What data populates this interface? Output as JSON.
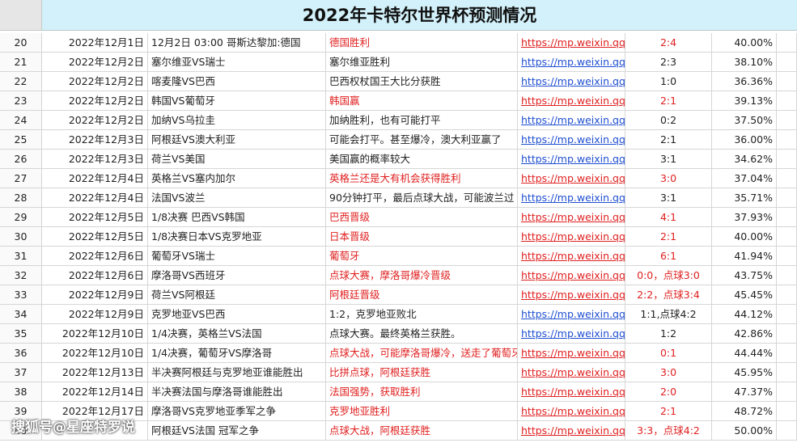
{
  "header": {
    "title": "2022年卡特尔世界杯预测情况"
  },
  "table": {
    "rows": [
      {
        "num": "20",
        "date": "2022年12月1日",
        "match": "12月2日  03:00 哥斯达黎加:德国",
        "prediction": "德国胜利",
        "link": "https://mp.weixin.qq.c",
        "score": "2:4",
        "rate": "40.00%",
        "highlight": true
      },
      {
        "num": "21",
        "date": "2022年12月2日",
        "match": "塞尔维亚VS瑞士",
        "prediction": "塞尔维亚胜利",
        "link": "https://mp.weixin.qq.c",
        "score": "2:3",
        "rate": "38.10%",
        "highlight": false
      },
      {
        "num": "22",
        "date": "2022年12月2日",
        "match": "喀麦隆VS巴西",
        "prediction": "巴西权杖国王大比分获胜",
        "link": "https://mp.weixin.qq.c",
        "score": "1:0",
        "rate": "36.36%",
        "highlight": false
      },
      {
        "num": "23",
        "date": "2022年12月2日",
        "match": "韩国VS葡萄牙",
        "prediction": "韩国赢",
        "link": "https://mp.weixin.qq.c",
        "score": "2:1",
        "rate": "39.13%",
        "highlight": true
      },
      {
        "num": "24",
        "date": "2022年12月2日",
        "match": "加纳VS乌拉圭",
        "prediction": "加纳胜利，也有可能打平",
        "link": "https://mp.weixin.qq.c",
        "score": "0:2",
        "rate": "37.50%",
        "highlight": false
      },
      {
        "num": "25",
        "date": "2022年12月3日",
        "match": "阿根廷VS澳大利亚",
        "prediction": "可能会打平。甚至爆冷，澳大利亚赢了",
        "link": "https://mp.weixin.qq.c",
        "score": "2:1",
        "rate": "36.00%",
        "highlight": false
      },
      {
        "num": "26",
        "date": "2022年12月3日",
        "match": "荷兰VS美国",
        "prediction": "美国赢的概率较大",
        "link": "https://mp.weixin.qq.c",
        "score": "3:1",
        "rate": "34.62%",
        "highlight": false
      },
      {
        "num": "27",
        "date": "2022年12月4日",
        "match": "英格兰VS塞内加尔",
        "prediction": "英格兰还是大有机会获得胜利",
        "link": "https://mp.weixin.qq.c",
        "score": "3:0",
        "rate": "37.04%",
        "highlight": true
      },
      {
        "num": "28",
        "date": "2022年12月4日",
        "match": "法国VS波兰",
        "prediction": "90分钟打平，最后点球大战，可能波兰过",
        "link": "https://mp.weixin.qq.c",
        "score": "3:1",
        "rate": "35.71%",
        "highlight": false
      },
      {
        "num": "29",
        "date": "2022年12月5日",
        "match": "1/8决赛 巴西VS韩国",
        "prediction": "巴西晋级",
        "link": "https://mp.weixin.qq.c",
        "score": "4:1",
        "rate": "37.93%",
        "highlight": true
      },
      {
        "num": "30",
        "date": "2022年12月5日",
        "match": "1/8决赛日本VS克罗地亚",
        "prediction": "日本晋级",
        "link": "https://mp.weixin.qq.c",
        "score": "2:1",
        "rate": "40.00%",
        "highlight": true
      },
      {
        "num": "31",
        "date": "2022年12月6日",
        "match": "葡萄牙VS瑞士",
        "prediction": "葡萄牙",
        "link": "https://mp.weixin.qq.c",
        "score": "6:1",
        "rate": "41.94%",
        "highlight": true
      },
      {
        "num": "32",
        "date": "2022年12月6日",
        "match": "摩洛哥VS西班牙",
        "prediction": "点球大赛，摩洛哥爆冷晋级",
        "link": "https://mp.weixin.qq.c",
        "score": "0:0，点球3:0",
        "rate": "43.75%",
        "highlight": true
      },
      {
        "num": "33",
        "date": "2022年12月9日",
        "match": "荷兰VS阿根廷",
        "prediction": "阿根廷晋级",
        "link": "https://mp.weixin.qq.c",
        "score": "2:2，点球3:4",
        "rate": "45.45%",
        "highlight": true
      },
      {
        "num": "34",
        "date": "2022年12月9日",
        "match": "克罗地亚VS巴西",
        "prediction": "1:2，克罗地亚败北",
        "link": "https://mp.weixin.qq.c",
        "score": "1:1,点球4:2",
        "rate": "44.12%",
        "highlight": false
      },
      {
        "num": "35",
        "date": "2022年12月10日",
        "match": "1/4决赛，英格兰VS法国",
        "prediction": "点球大赛。最终英格兰获胜。",
        "link": "https://mp.weixin.qq.c",
        "score": "1:2",
        "rate": "42.86%",
        "highlight": false
      },
      {
        "num": "36",
        "date": "2022年12月10日",
        "match": "1/4决赛，葡萄牙VS摩洛哥",
        "prediction": "点球大战，可能摩洛哥爆冷，送走了葡萄牙",
        "link": "https://mp.weixin.qq.c",
        "score": "0:1",
        "rate": "44.44%",
        "highlight": true
      },
      {
        "num": "37",
        "date": "2022年12月13日",
        "match": "半决赛阿根廷与克罗地亚谁能胜出",
        "prediction": "比拼点球，阿根廷获胜",
        "link": "https://mp.weixin.qq.c",
        "score": "3:0",
        "rate": "45.95%",
        "highlight": true
      },
      {
        "num": "38",
        "date": "2022年12月14日",
        "match": "半决赛法国与摩洛哥谁能胜出",
        "prediction": "法国强势，获取胜利",
        "link": "https://mp.weixin.qq.c",
        "score": "2:0",
        "rate": "47.37%",
        "highlight": true
      },
      {
        "num": "39",
        "date": "2022年12月17日",
        "match": "摩洛哥VS克罗地亚季军之争",
        "prediction": "克罗地亚胜利",
        "link": "https://mp.weixin.qq.c",
        "score": "2:1",
        "rate": "48.72%",
        "highlight": true
      },
      {
        "num": "40",
        "date": null,
        "match": "阿根廷VS法国 冠军之争",
        "prediction": "点球大战，阿根廷获胜",
        "link": "https://mp.weixin.qq.c",
        "score": "3:3，点球4:2",
        "rate": "50.00%",
        "highlight": true
      }
    ]
  },
  "watermark": "搜狐号@星座特罗说"
}
